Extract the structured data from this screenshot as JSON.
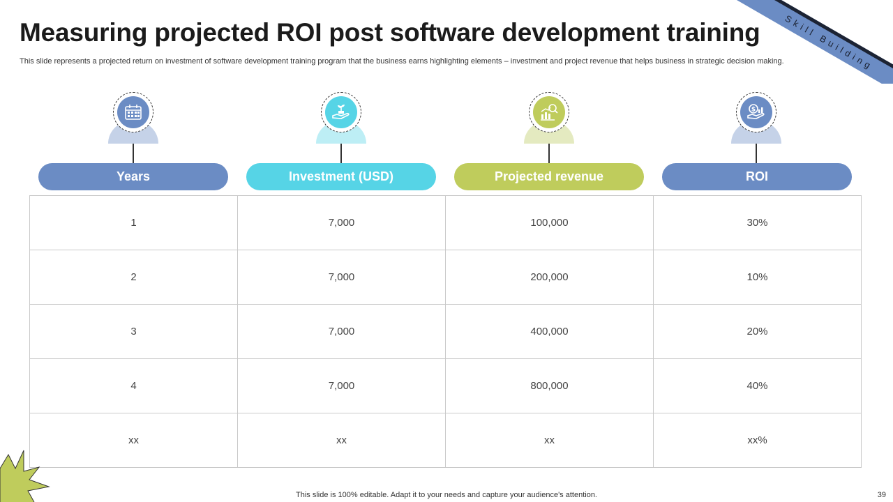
{
  "ribbon_text": "Skill Building",
  "title": "Measuring projected ROI post software development training",
  "subtitle": "This slide represents a projected return on investment of software development training program that the business earns highlighting elements – investment and project revenue that helps business in strategic decision making.",
  "columns": [
    {
      "label": "Years",
      "icon": "calendar-icon",
      "color": "#6b8cc4",
      "bump": "#c5d2e8"
    },
    {
      "label": "Investment (USD)",
      "icon": "hand-plant-icon",
      "color": "#56d4e6",
      "bump": "#bdeef5"
    },
    {
      "label": "Projected revenue",
      "icon": "revenue-growth-icon",
      "color": "#bfcc5c",
      "bump": "#e4eac0"
    },
    {
      "label": "ROI",
      "icon": "dollar-hand-icon",
      "color": "#6b8cc4",
      "bump": "#c5d2e8"
    }
  ],
  "rows": [
    [
      "1",
      "7,000",
      "100,000",
      "30%"
    ],
    [
      "2",
      "7,000",
      "200,000",
      "10%"
    ],
    [
      "3",
      "7,000",
      "400,000",
      "20%"
    ],
    [
      "4",
      "7,000",
      "800,000",
      "40%"
    ],
    [
      "xx",
      "xx",
      "xx",
      "xx%"
    ]
  ],
  "footer": "This slide is 100% editable. Adapt it to your needs and capture your audience's attention.",
  "page_number": "39"
}
